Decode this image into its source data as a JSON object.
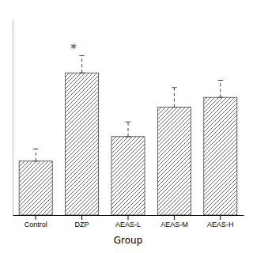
{
  "chart_data": {
    "type": "bar",
    "xlabel": "Group",
    "categories": [
      "Control",
      "DZP",
      "AEAS-L",
      "AEAS-M",
      "AEAS-H"
    ],
    "values": [
      22,
      58,
      32,
      44,
      48
    ],
    "errors": [
      5,
      7,
      6,
      8,
      7
    ],
    "significance": [
      null,
      "*",
      null,
      null,
      null
    ],
    "color": "white",
    "ylim": [
      0,
      80
    ],
    "grid": false,
    "tick_labels": "x"
  }
}
